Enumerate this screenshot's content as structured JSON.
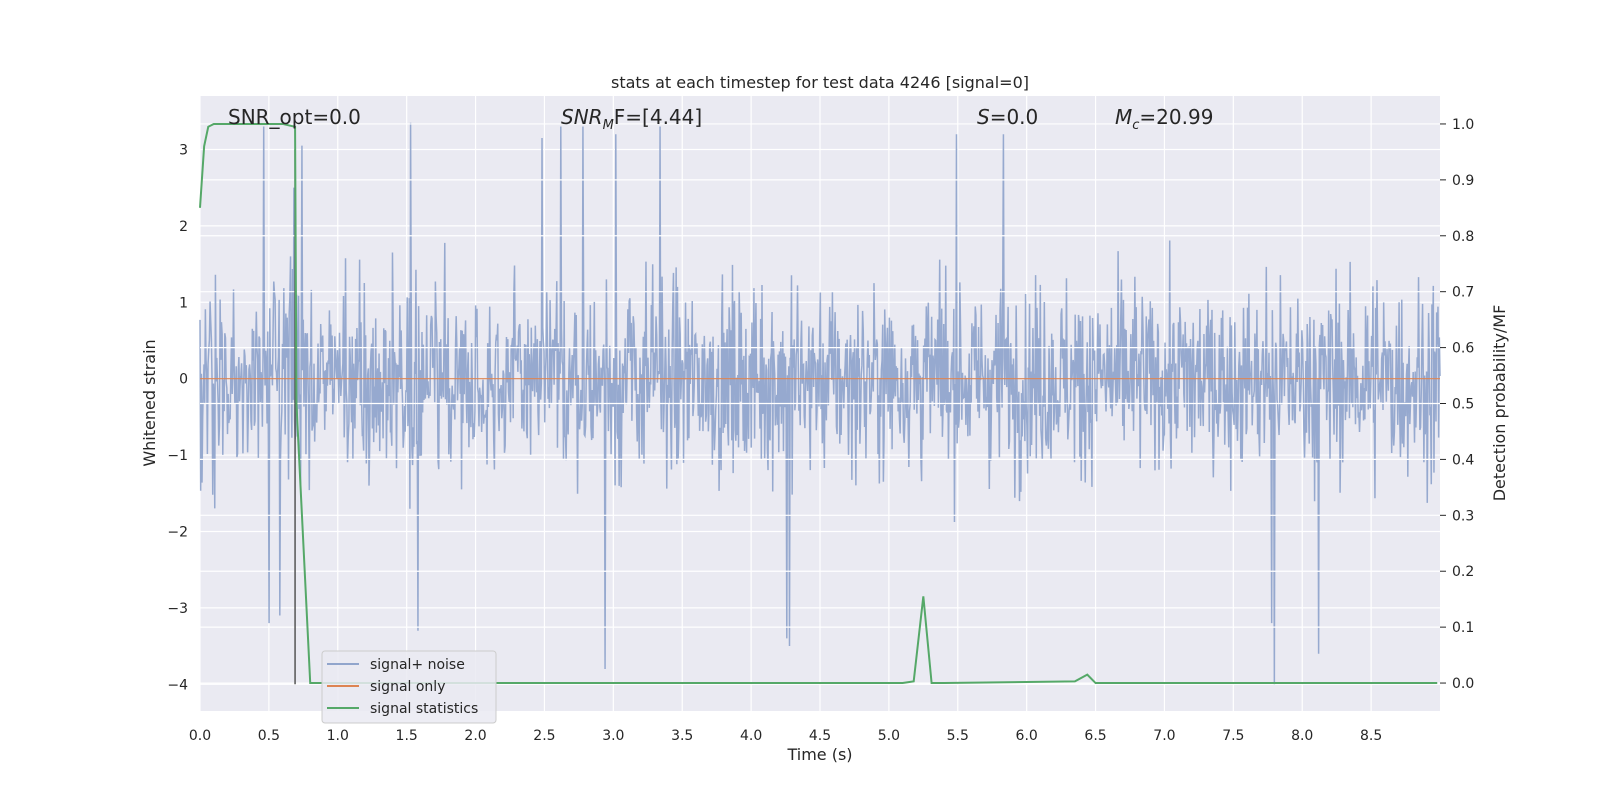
{
  "chart_data": {
    "type": "line",
    "title": "stats at each timestep for test data 4246 [signal=0]",
    "xlabel": "Time (s)",
    "ylabel_left": "Whitened strain",
    "ylabel_right": "Detection probability/MF",
    "xlim": [
      0.0,
      9.0
    ],
    "ylim_left": [
      -4.35,
      3.7
    ],
    "ylim_right": [
      -0.05,
      1.05
    ],
    "x_ticks": [
      0.0,
      0.5,
      1.0,
      1.5,
      2.0,
      2.5,
      3.0,
      3.5,
      4.0,
      4.5,
      5.0,
      5.5,
      6.0,
      6.5,
      7.0,
      7.5,
      8.0,
      8.5
    ],
    "x_tick_labels": [
      "0.0",
      "0.5",
      "1.0",
      "1.5",
      "2.0",
      "2.5",
      "3.0",
      "3.5",
      "4.0",
      "4.5",
      "5.0",
      "5.5",
      "6.0",
      "6.5",
      "7.0",
      "7.5",
      "8.0",
      "8.5"
    ],
    "y_ticks_left": [
      -4,
      -3,
      -2,
      -1,
      0,
      1,
      2,
      3
    ],
    "y_tick_labels_left": [
      "−4",
      "−3",
      "−2",
      "−1",
      "0",
      "1",
      "2",
      "3"
    ],
    "y_ticks_right": [
      0.0,
      0.1,
      0.2,
      0.3,
      0.4,
      0.5,
      0.6,
      0.7,
      0.8,
      0.9,
      1.0
    ],
    "y_tick_labels_right": [
      "0.0",
      "0.1",
      "0.2",
      "0.3",
      "0.4",
      "0.5",
      "0.6",
      "0.7",
      "0.8",
      "0.9",
      "1.0"
    ],
    "grid": true,
    "legend_position": "bottom-left",
    "annotations": {
      "snr_opt": "SNR_opt=0.0",
      "snr_mf_main": "SNR",
      "snr_mf_sub": "M",
      "snr_mf_tail": "F=[4.44]",
      "s_main": "S",
      "s_tail": "=0.0",
      "mc_main": "M",
      "mc_sub": "c",
      "mc_tail": "=20.99"
    },
    "marker_time": 0.69,
    "series": [
      {
        "name": "signal+ noise",
        "axis": "left",
        "color": "#91a5cc",
        "noise_profile": {
          "t_start": 0.0,
          "t_end": 9.0,
          "samples": 1850,
          "typical_range": [
            -2.0,
            2.6
          ],
          "max": 3.35,
          "min": -4.0
        },
        "spikes": [
          [
            0.46,
            3.3
          ],
          [
            0.58,
            3.05
          ],
          [
            0.68,
            2.5
          ],
          [
            0.74,
            3.05
          ],
          [
            1.53,
            3.35
          ],
          [
            1.58,
            -3.6
          ],
          [
            2.48,
            3.15
          ],
          [
            2.62,
            3.3
          ],
          [
            2.78,
            3.3
          ],
          [
            2.94,
            -3.8
          ],
          [
            3.02,
            3.2
          ],
          [
            3.34,
            3.3
          ],
          [
            4.26,
            -3.4
          ],
          [
            4.28,
            -3.5
          ],
          [
            5.49,
            3.2
          ],
          [
            5.83,
            3.2
          ],
          [
            7.78,
            -3.2
          ],
          [
            7.8,
            -4.0
          ],
          [
            8.12,
            -3.6
          ],
          [
            1.58,
            -3.3
          ],
          [
            0.58,
            -3.1
          ],
          [
            0.5,
            -3.2
          ]
        ]
      },
      {
        "name": "signal only",
        "axis": "left",
        "color": "#dd8452",
        "x": [
          0.0,
          9.0
        ],
        "y": [
          0.0,
          0.0
        ]
      },
      {
        "name": "signal statistics",
        "axis": "right",
        "color": "#55a868",
        "x": [
          0.0,
          0.03,
          0.06,
          0.1,
          0.3,
          0.6,
          0.69,
          0.7,
          0.8,
          0.9,
          5.1,
          5.18,
          5.25,
          5.31,
          5.4,
          6.35,
          6.44,
          6.5,
          8.98
        ],
        "y": [
          0.85,
          0.96,
          0.995,
          1.0,
          1.0,
          1.0,
          0.995,
          0.5,
          0.0,
          0.0,
          0.0,
          0.003,
          0.155,
          0.0,
          0.0,
          0.003,
          0.015,
          0.0,
          0.0
        ]
      }
    ]
  }
}
